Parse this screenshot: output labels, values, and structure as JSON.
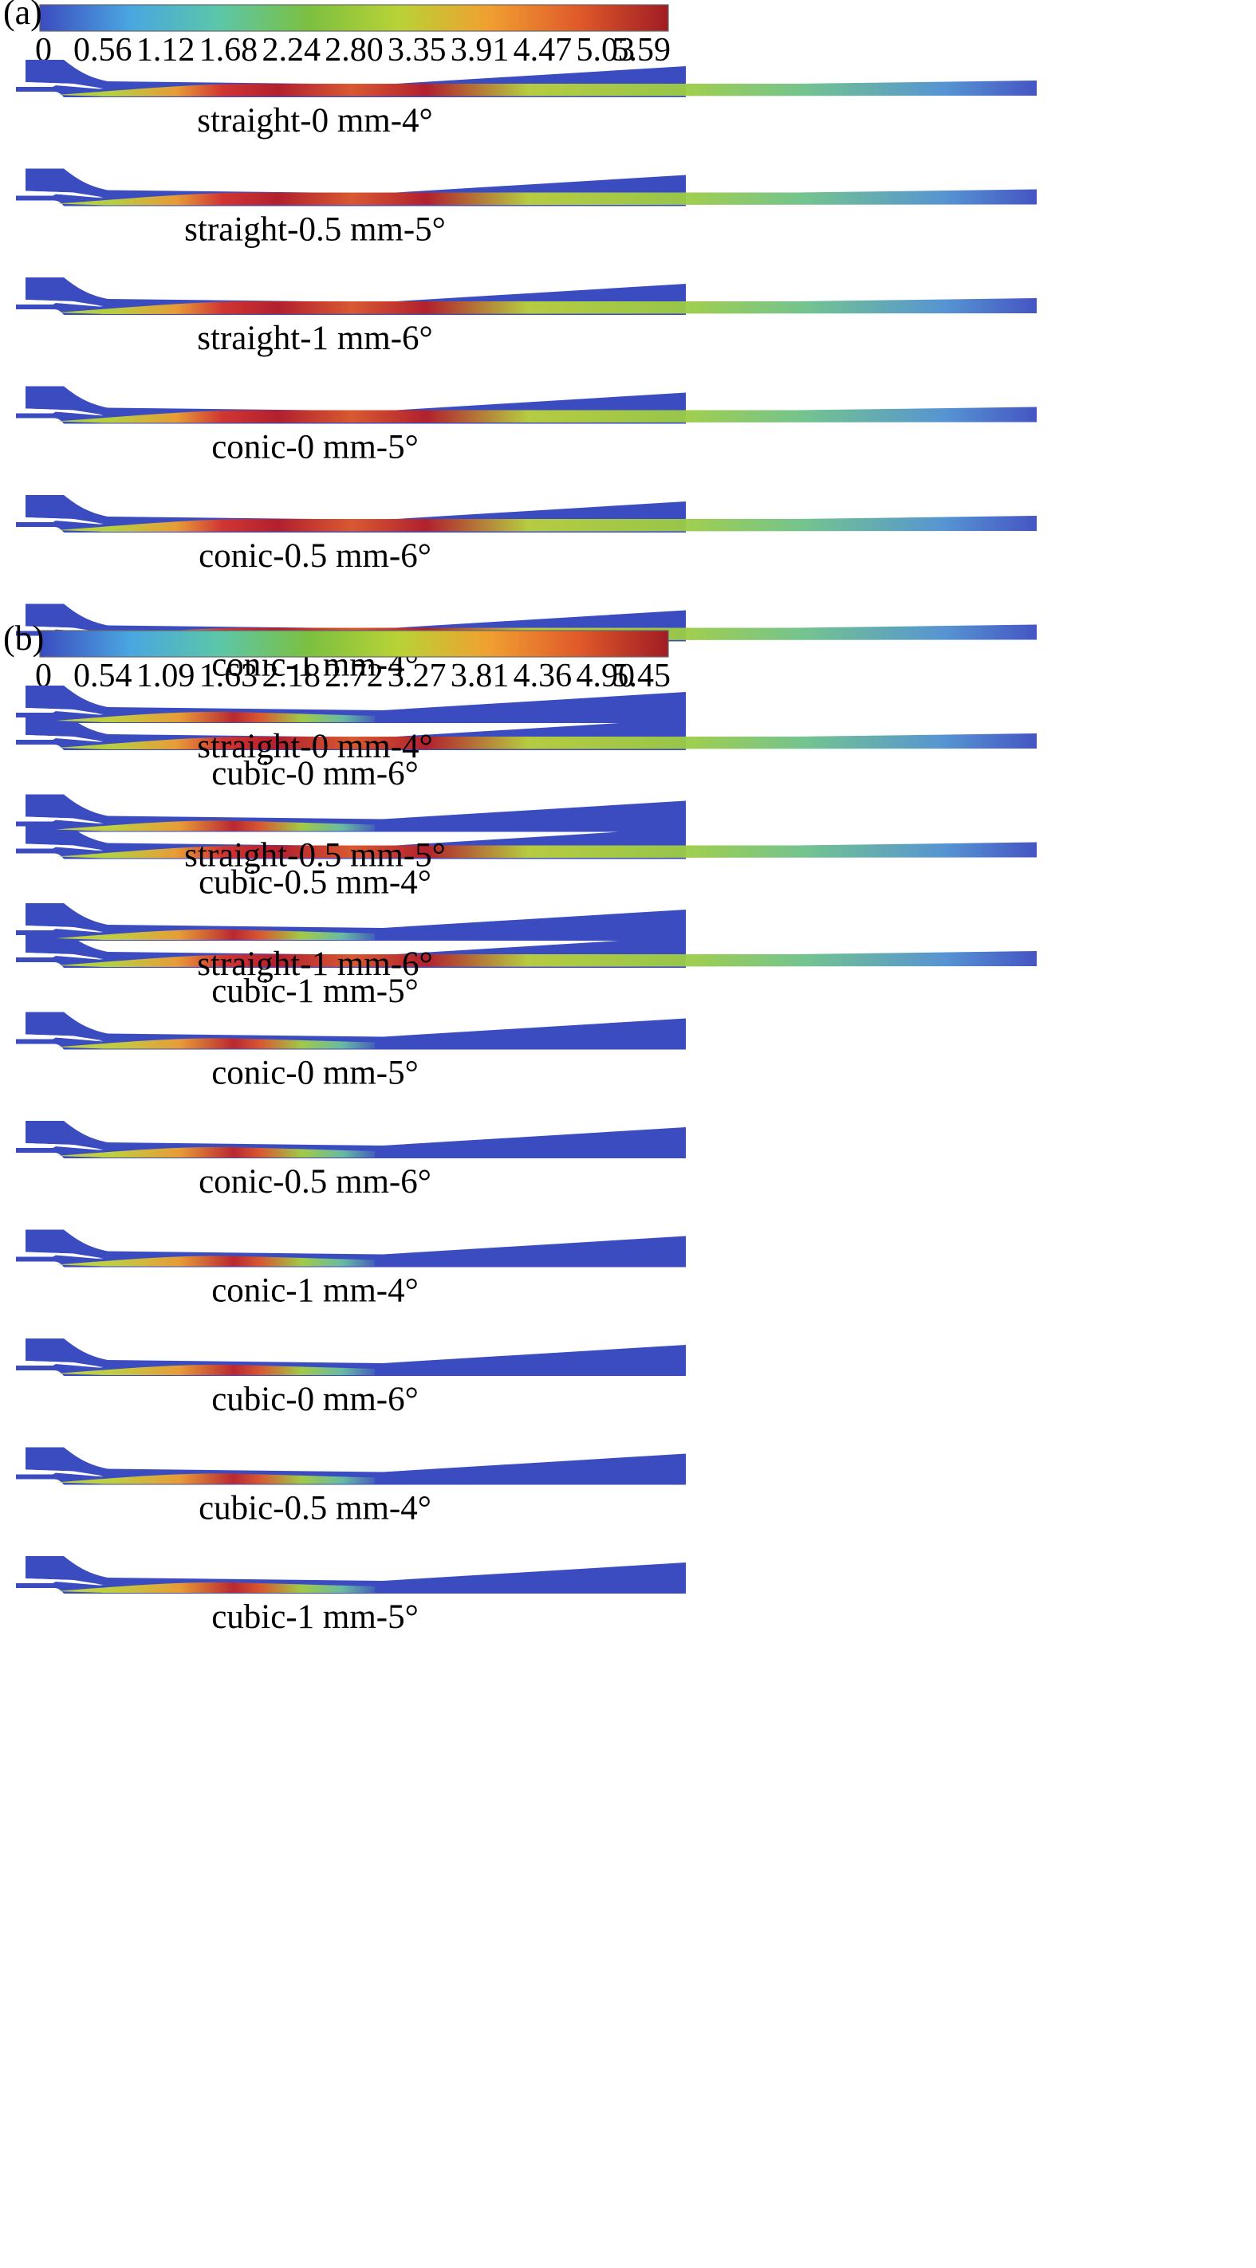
{
  "panels": [
    {
      "label": "(a)",
      "scale_min": 0,
      "scale_max": 5.59,
      "ticks": [
        "0",
        "0.56",
        "1.12",
        "1.68",
        "2.24",
        "2.80",
        "3.35",
        "3.91",
        "4.47",
        "5.03",
        "5.59"
      ],
      "cases": [
        {
          "label": "straight-0 mm-4°"
        },
        {
          "label": "straight-0.5 mm-5°"
        },
        {
          "label": "straight-1 mm-6°"
        },
        {
          "label": "conic-0 mm-5°"
        },
        {
          "label": "conic-0.5 mm-6°"
        },
        {
          "label": "conic-1 mm-4°"
        },
        {
          "label": "cubic-0 mm-6°"
        },
        {
          "label": "cubic-0.5 mm-4°"
        },
        {
          "label": "cubic-1 mm-5°"
        }
      ]
    },
    {
      "label": "(b)",
      "scale_min": 0,
      "scale_max": 5.45,
      "ticks": [
        "0",
        "0.54",
        "1.09",
        "1.63",
        "2.18",
        "2.72",
        "3.27",
        "3.81",
        "4.36",
        "4.90",
        "5.45"
      ],
      "cases": [
        {
          "label": "straight-0 mm-4°"
        },
        {
          "label": "straight-0.5 mm-5°"
        },
        {
          "label": "straight-1 mm-6°"
        },
        {
          "label": "conic-0 mm-5°"
        },
        {
          "label": "conic-0.5 mm-6°"
        },
        {
          "label": "conic-1 mm-4°"
        },
        {
          "label": "cubic-0 mm-6°"
        },
        {
          "label": "cubic-0.5 mm-4°"
        },
        {
          "label": "cubic-1 mm-5°"
        }
      ]
    }
  ],
  "colormap": [
    "#3b4cc0",
    "#4aa6e0",
    "#5cc6a8",
    "#7cc040",
    "#b9d236",
    "#f0a030",
    "#e05a2a",
    "#a01c24"
  ]
}
